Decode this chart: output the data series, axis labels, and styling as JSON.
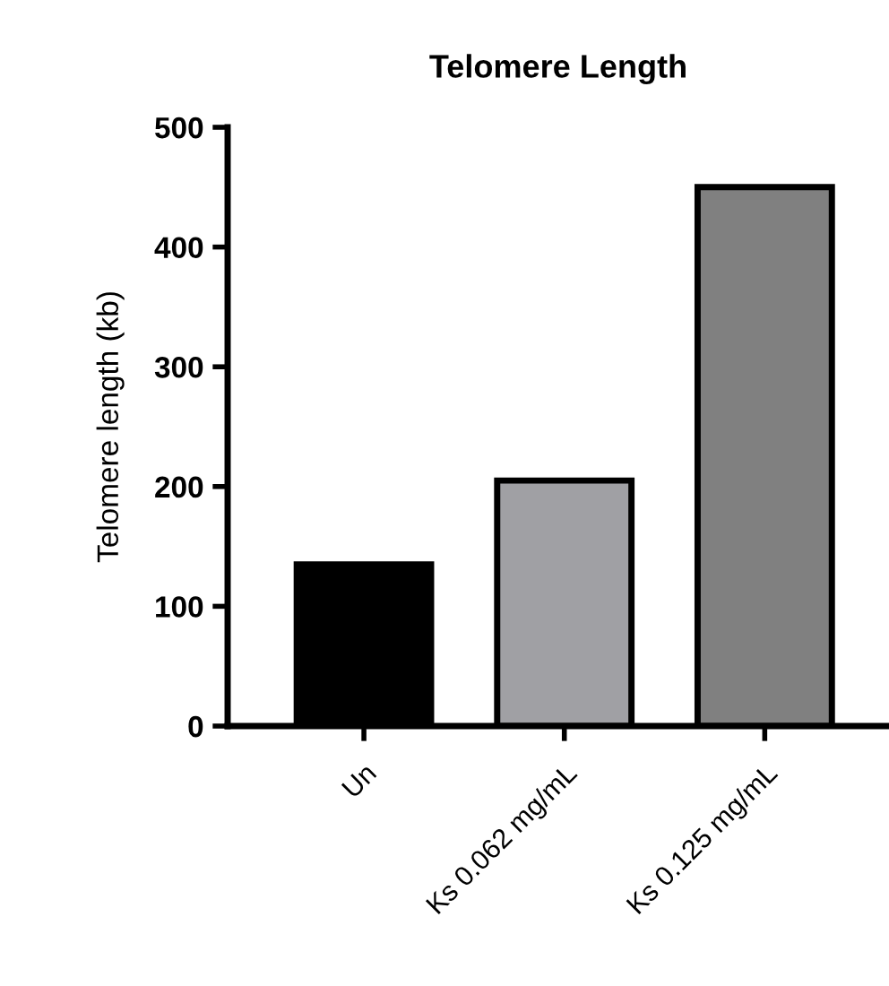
{
  "chart_data": {
    "type": "bar",
    "title": "Telomere Length",
    "ylabel": "Telomere length (kb)",
    "categories": [
      "Un",
      "Ks 0.062 mg/mL",
      "Ks 0.125 mg/mL"
    ],
    "values": [
      135,
      205,
      450
    ],
    "colors": [
      "#000000",
      "#a0a0a4",
      "#808080"
    ],
    "ylim": [
      0,
      500
    ],
    "yticks": [
      0,
      100,
      200,
      300,
      400,
      500
    ],
    "grid": false
  }
}
